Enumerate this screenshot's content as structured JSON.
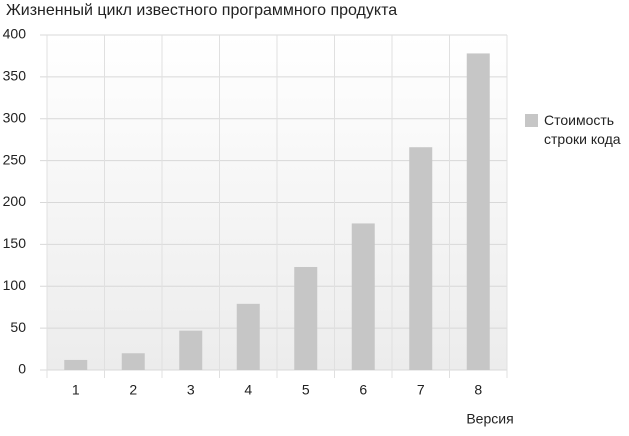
{
  "chart_data": {
    "type": "bar",
    "title": "Жизненный цикл известного программного продукта",
    "x_label": "Версия",
    "categories": [
      "1",
      "2",
      "3",
      "4",
      "5",
      "6",
      "7",
      "8"
    ],
    "series": [
      {
        "name": "Стоимость строки кода",
        "color": "#c6c6c6",
        "values": [
          12,
          20,
          47,
          79,
          123,
          175,
          266,
          378
        ]
      }
    ],
    "ylim": [
      0,
      400
    ],
    "yticks": [
      0,
      50,
      100,
      150,
      200,
      250,
      300,
      350,
      400
    ],
    "grid": true,
    "legend": "right"
  }
}
